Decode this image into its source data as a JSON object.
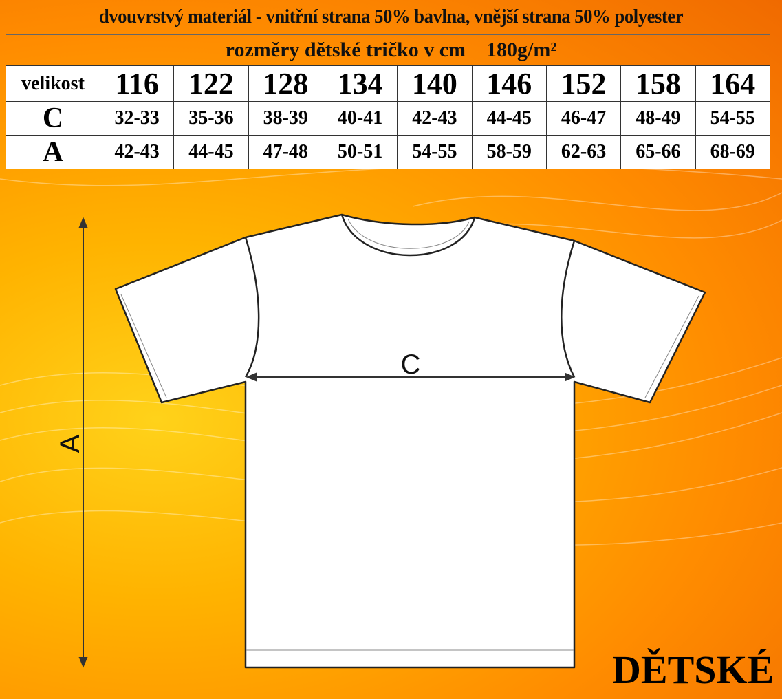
{
  "title": "dvouvrstvý materiál - vnitřní strana 50% bavlna, vnější strana 50% polyester",
  "subtitle": "rozměry dětské tričko v cm    180g/m²",
  "table": {
    "header_label": "velikost",
    "sizes": [
      "116",
      "122",
      "128",
      "134",
      "140",
      "146",
      "152",
      "158",
      "164"
    ],
    "rows": [
      {
        "label": "C",
        "values": [
          "32-33",
          "35-36",
          "38-39",
          "40-41",
          "42-43",
          "44-45",
          "46-47",
          "48-49",
          "54-55"
        ]
      },
      {
        "label": "A",
        "values": [
          "42-43",
          "44-45",
          "47-48",
          "50-51",
          "54-55",
          "58-59",
          "62-63",
          "65-66",
          "68-69"
        ]
      }
    ]
  },
  "diagram": {
    "width_label": "C",
    "length_label": "A"
  },
  "badge": "DĚTSKÉ",
  "colors": {
    "background": "#ff9a00",
    "text": "#000000",
    "shirt": "#ffffff"
  }
}
